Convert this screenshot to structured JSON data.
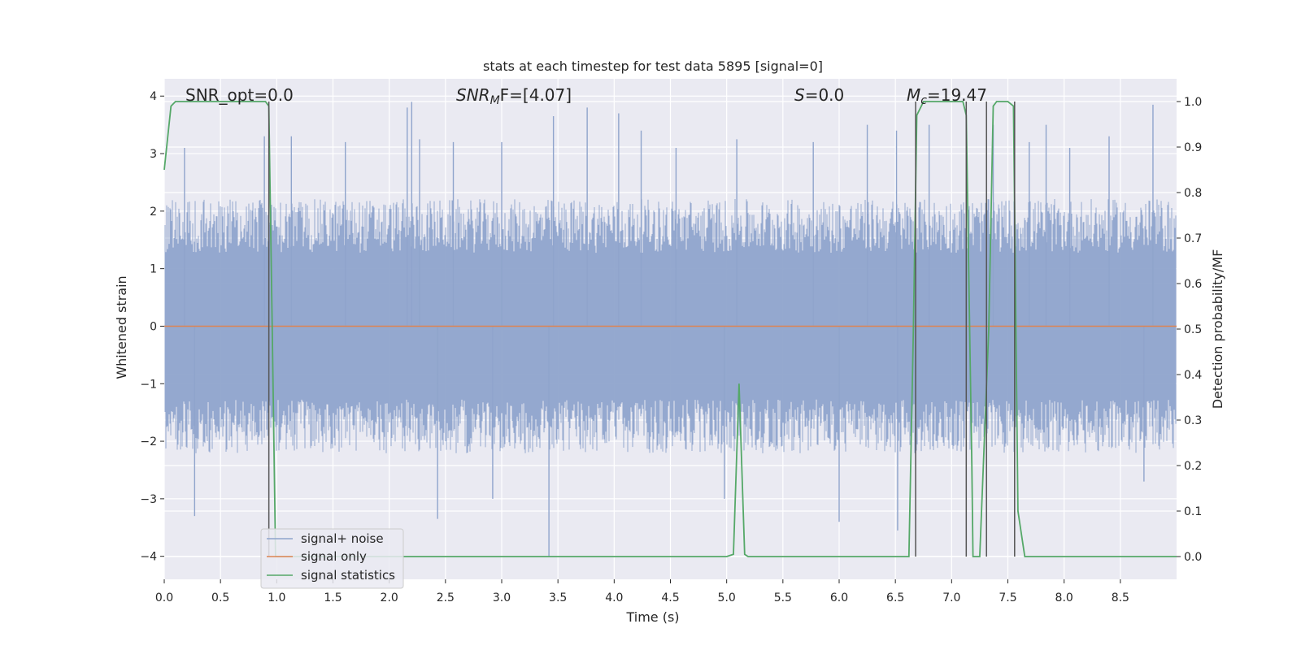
{
  "chart_data": {
    "type": "line",
    "title": "stats at each timestep for test data 5895 [signal=0]",
    "xlabel": "Time (s)",
    "ylabel_left": "Whitened strain",
    "ylabel_right": "Detection probability/MF",
    "xlim": [
      0.0,
      9.0
    ],
    "ylim_left": [
      -4.4,
      4.3
    ],
    "ylim_right": [
      -0.05,
      1.05
    ],
    "x_ticks": [
      "0.0",
      "0.5",
      "1.0",
      "1.5",
      "2.0",
      "2.5",
      "3.0",
      "3.5",
      "4.0",
      "4.5",
      "5.0",
      "5.5",
      "6.0",
      "6.5",
      "7.0",
      "7.5",
      "8.0",
      "8.5"
    ],
    "y_ticks_left": [
      "4",
      "3",
      "2",
      "1",
      "0",
      "−1",
      "−2",
      "−3",
      "−4"
    ],
    "y_ticks_right": [
      "1.0",
      "0.9",
      "0.8",
      "0.7",
      "0.6",
      "0.5",
      "0.4",
      "0.3",
      "0.2",
      "0.1",
      "0.0"
    ],
    "grid": true,
    "legend_position": "lower-left",
    "annotations": {
      "snr_opt": "SNR_opt=0.0",
      "snr_mf_sym": "SNR",
      "snr_mf_sub": "M",
      "snr_mf_rest": "F=[4.07]",
      "s_sym": "S",
      "s_rest": "=0.0",
      "mc_sym": "M",
      "mc_sub": "c",
      "mc_rest": "=19.47"
    },
    "series": [
      {
        "name": "signal+ noise",
        "color": "#8fa4cc",
        "kind": "noise",
        "typical_range": [
          -1.7,
          1.7
        ],
        "spikes": [
          {
            "x": 0.18,
            "y": 3.1
          },
          {
            "x": 0.27,
            "y": -3.3
          },
          {
            "x": 0.89,
            "y": 3.3
          },
          {
            "x": 1.13,
            "y": 3.3
          },
          {
            "x": 1.61,
            "y": 3.2
          },
          {
            "x": 2.16,
            "y": 3.8
          },
          {
            "x": 2.2,
            "y": 3.9
          },
          {
            "x": 2.27,
            "y": 3.25
          },
          {
            "x": 2.43,
            "y": -3.35
          },
          {
            "x": 2.57,
            "y": 3.2
          },
          {
            "x": 2.92,
            "y": -3.0
          },
          {
            "x": 3.0,
            "y": 3.2
          },
          {
            "x": 3.42,
            "y": -4.0
          },
          {
            "x": 3.46,
            "y": 3.65
          },
          {
            "x": 3.76,
            "y": 3.8
          },
          {
            "x": 4.04,
            "y": 3.7
          },
          {
            "x": 4.24,
            "y": 3.4
          },
          {
            "x": 4.55,
            "y": 3.1
          },
          {
            "x": 4.98,
            "y": -3.0
          },
          {
            "x": 5.09,
            "y": 3.25
          },
          {
            "x": 5.77,
            "y": 3.2
          },
          {
            "x": 6.0,
            "y": -3.4
          },
          {
            "x": 6.25,
            "y": 3.5
          },
          {
            "x": 6.51,
            "y": 3.4
          },
          {
            "x": 6.52,
            "y": -3.55
          },
          {
            "x": 6.8,
            "y": 3.5
          },
          {
            "x": 7.37,
            "y": 3.5
          },
          {
            "x": 7.69,
            "y": 3.2
          },
          {
            "x": 7.84,
            "y": 3.5
          },
          {
            "x": 8.05,
            "y": 3.1
          },
          {
            "x": 8.4,
            "y": 3.3
          },
          {
            "x": 8.79,
            "y": 3.85
          },
          {
            "x": 8.71,
            "y": -2.7
          }
        ]
      },
      {
        "name": "signal only",
        "color": "#dd8452",
        "x": [
          0.0,
          9.0
        ],
        "y": [
          0.0,
          0.0
        ]
      },
      {
        "name": "signal statistics",
        "color": "#55a868",
        "axis": "right",
        "x": [
          0.0,
          0.06,
          0.1,
          0.9,
          0.93,
          0.96,
          0.99,
          5.0,
          5.06,
          5.11,
          5.16,
          5.19,
          5.24,
          6.62,
          6.66,
          6.69,
          6.75,
          6.79,
          7.1,
          7.13,
          7.18,
          7.19,
          7.25,
          7.33,
          7.37,
          7.4,
          7.5,
          7.55,
          7.59,
          7.65,
          7.7,
          9.0
        ],
        "y": [
          0.85,
          0.99,
          1.0,
          1.0,
          0.99,
          0.5,
          0.0,
          0.0,
          0.005,
          0.38,
          0.005,
          0.0,
          0.0,
          0.0,
          0.5,
          0.97,
          1.0,
          1.0,
          1.0,
          0.97,
          0.2,
          0.0,
          0.0,
          0.5,
          0.99,
          1.0,
          1.0,
          0.99,
          0.1,
          0.0,
          0.0,
          0.0
        ]
      }
    ],
    "vertical_lines_x": [
      0.93,
      6.68,
      7.13,
      7.31,
      7.56
    ]
  }
}
